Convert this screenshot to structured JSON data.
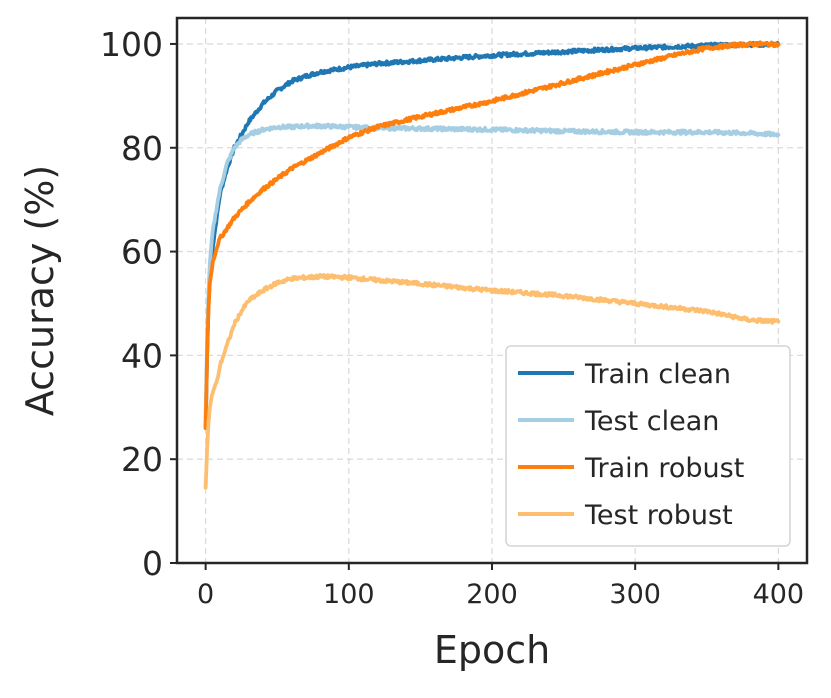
{
  "chart_data": {
    "type": "line",
    "title": "",
    "xlabel": "Epoch",
    "ylabel": "Accuracy (%)",
    "xlim": [
      -20,
      420
    ],
    "ylim": [
      0,
      105
    ],
    "xticks": [
      0,
      100,
      200,
      300,
      400
    ],
    "yticks": [
      0,
      20,
      40,
      60,
      80,
      100
    ],
    "grid": true,
    "legend_position": "lower-right",
    "series": [
      {
        "name": "Train clean",
        "color": "#1f77b4",
        "x": [
          0,
          1,
          2,
          3,
          5,
          8,
          10,
          15,
          20,
          25,
          30,
          40,
          50,
          60,
          70,
          80,
          100,
          120,
          150,
          200,
          250,
          300,
          350,
          380,
          400
        ],
        "y": [
          26,
          40,
          50,
          56,
          61,
          67,
          71,
          76,
          80,
          82.5,
          85,
          88.5,
          91,
          92.8,
          93.8,
          94.6,
          95.5,
          96.2,
          96.8,
          97.8,
          98.5,
          99.2,
          99.7,
          99.9,
          99.9
        ]
      },
      {
        "name": "Test clean",
        "color": "#a6cee3",
        "x": [
          0,
          1,
          2,
          3,
          5,
          8,
          10,
          15,
          20,
          25,
          30,
          40,
          50,
          60,
          70,
          80,
          100,
          120,
          150,
          200,
          250,
          300,
          350,
          380,
          400
        ],
        "y": [
          28,
          43,
          52,
          58,
          64,
          69,
          72,
          77,
          80,
          81.5,
          82.5,
          83.5,
          84,
          84,
          84.2,
          84.2,
          84,
          83.8,
          83.7,
          83.5,
          83.2,
          83,
          83,
          82.8,
          82.5
        ]
      },
      {
        "name": "Train robust",
        "color": "#ff7f0e",
        "x": [
          0,
          1,
          2,
          3,
          5,
          8,
          10,
          15,
          20,
          25,
          30,
          40,
          50,
          60,
          70,
          80,
          100,
          120,
          150,
          200,
          250,
          300,
          330,
          350,
          370,
          385,
          400
        ],
        "y": [
          26,
          40,
          49,
          54,
          58,
          61,
          62.5,
          64.5,
          66.5,
          68,
          69.5,
          72,
          74,
          76,
          77.5,
          79,
          82,
          84,
          86,
          89,
          92.5,
          96,
          98,
          99.2,
          99.8,
          100,
          99.9
        ]
      },
      {
        "name": "Test robust",
        "color": "#fdbf6f",
        "x": [
          0,
          1,
          2,
          3,
          5,
          8,
          10,
          15,
          20,
          25,
          30,
          40,
          50,
          60,
          70,
          80,
          100,
          120,
          150,
          200,
          250,
          300,
          350,
          380,
          400
        ],
        "y": [
          14.5,
          22,
          27,
          30,
          33,
          35,
          38,
          42,
          46,
          48.5,
          50.5,
          52.5,
          54,
          54.8,
          55,
          55.2,
          55,
          54.5,
          53.8,
          52.5,
          51.5,
          50,
          48.5,
          46.8,
          46.5
        ]
      }
    ]
  }
}
